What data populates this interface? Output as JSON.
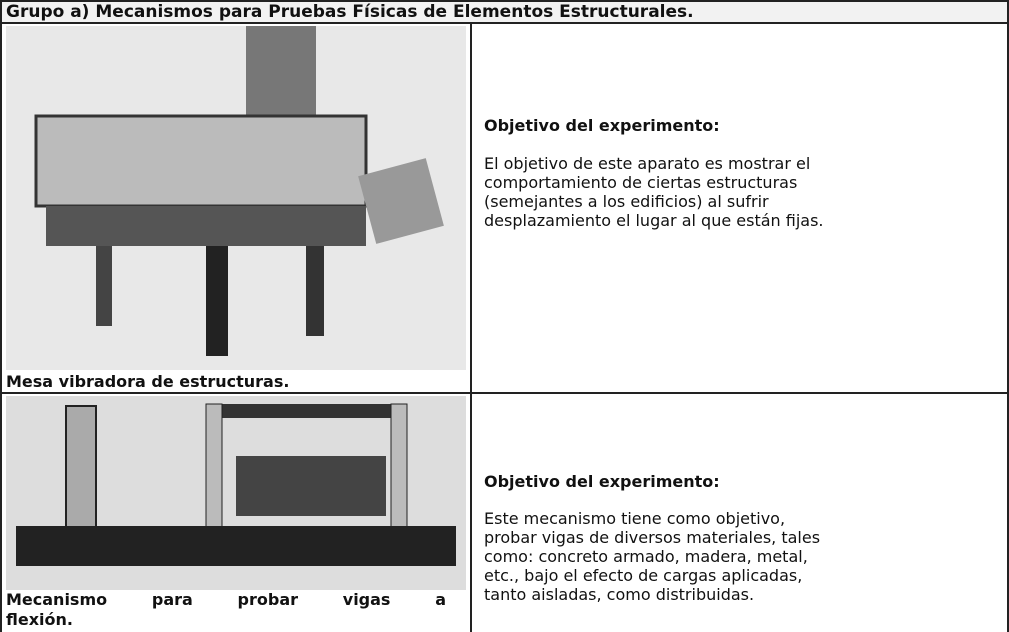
{
  "header": {
    "title": "Grupo a) Mecanismos para Pruebas Físicas de Elementos Estructurales."
  },
  "rows": [
    {
      "caption": [
        "Mesa vibradora de estructuras."
      ],
      "heading": "Objetivo del experimento:",
      "text": [
        "El objetivo de este aparato es mostrar el",
        "comportamiento de ciertas estructuras",
        "(semejantes a los edificios) al sufrir",
        "desplazamiento el lugar al que están fijas."
      ]
    },
    {
      "caption": [
        "Mecanismo para probar vigas a",
        "flexión."
      ],
      "heading": "Objetivo del experimento:",
      "text": [
        "Este mecanismo tiene como objetivo,",
        "probar vigas de diversos materiales, tales",
        "como: concreto armado, madera, metal,",
        "etc., bajo el efecto de cargas aplicadas,",
        "tanto aisladas, como distribuidas."
      ]
    }
  ]
}
